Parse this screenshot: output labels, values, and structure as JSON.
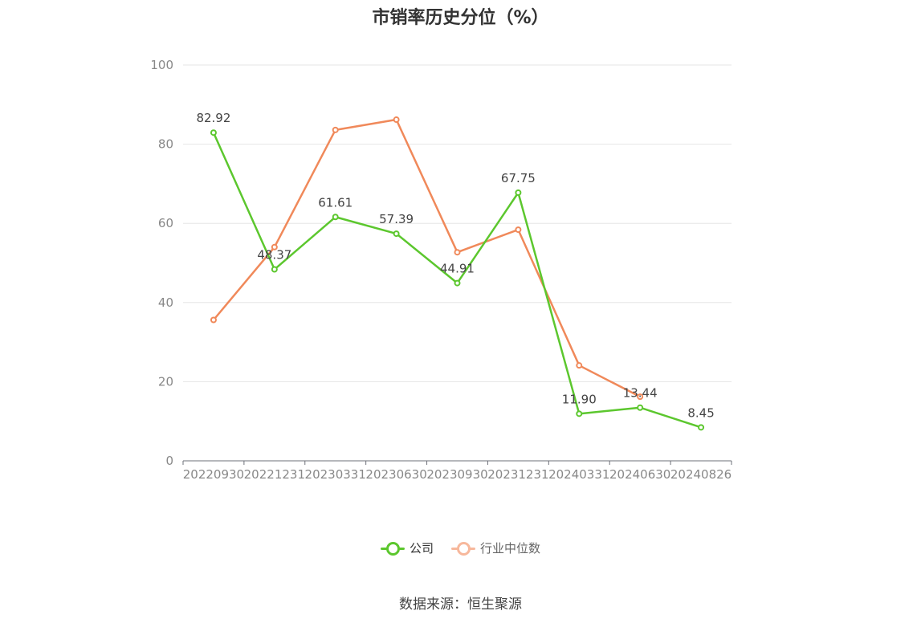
{
  "chart_data": {
    "type": "line",
    "title": "市销率历史分位（%）",
    "categories": [
      "20220930",
      "20221231",
      "20230331",
      "20230630",
      "20230930",
      "20231231",
      "20240331",
      "20240630",
      "20240826"
    ],
    "series": [
      {
        "name": "公司",
        "color": "#5cc72e",
        "values": [
          82.92,
          48.37,
          61.61,
          57.39,
          44.91,
          67.75,
          11.9,
          13.44,
          8.45
        ],
        "show_labels": true
      },
      {
        "name": "行业中位数",
        "color": "#f0895a",
        "legend_color": "#f7b89c",
        "values": [
          35.6,
          54.0,
          83.6,
          86.2,
          52.7,
          58.4,
          24.1,
          16.2,
          null
        ],
        "show_labels": false
      }
    ],
    "y_ticks": [
      "0",
      "20",
      "40",
      "60",
      "80",
      "100"
    ],
    "ylim": [
      0,
      100
    ],
    "grid": true,
    "legend_position": "bottom"
  },
  "source": "数据来源：恒生聚源"
}
